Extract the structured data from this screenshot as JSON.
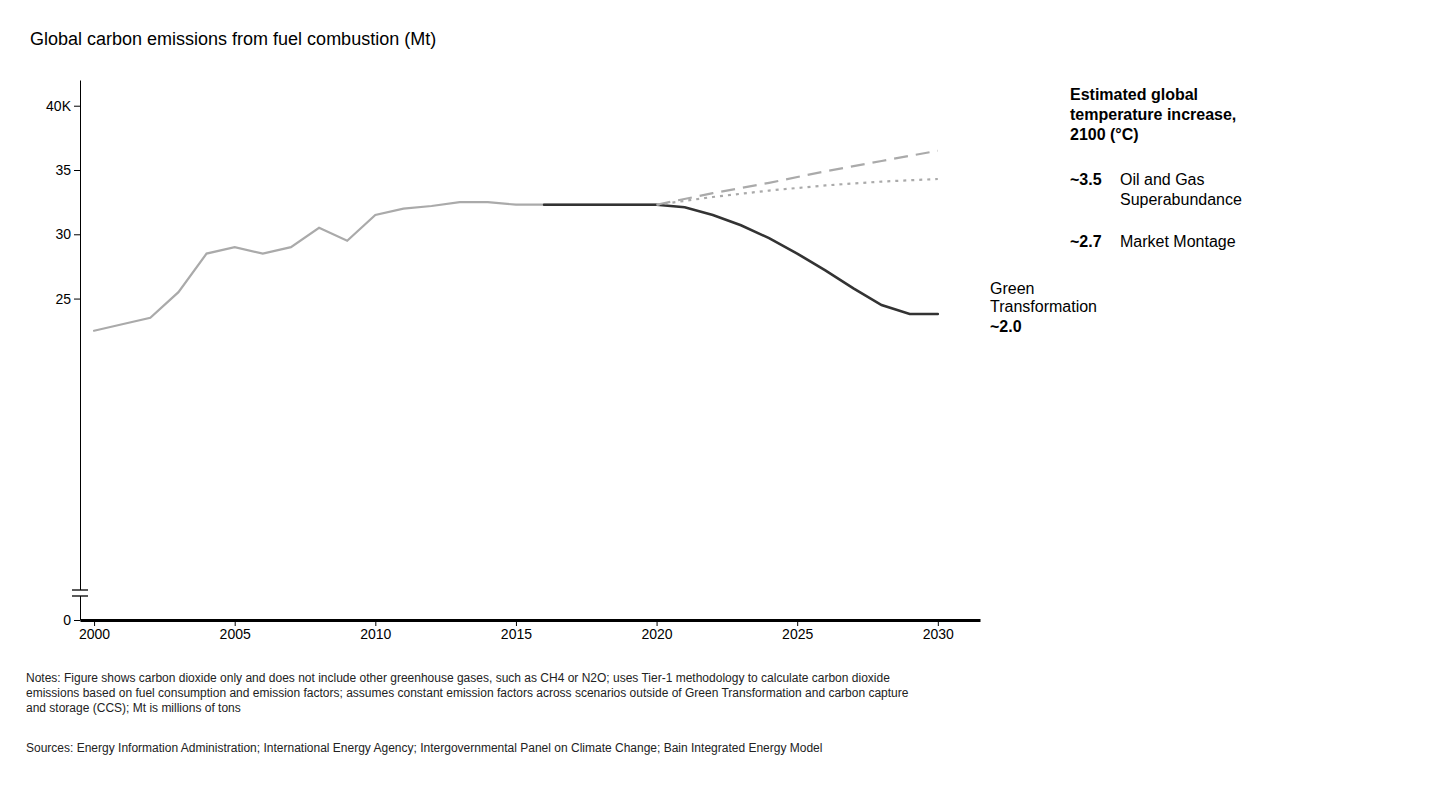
{
  "chart_data": {
    "type": "line",
    "title": "Global carbon emissions from fuel combustion (Mt)",
    "notes": "Notes: Figure shows carbon dioxide only and does not include other greenhouse gases, such as CH4 or N2O; uses Tier-1 methodology to calculate carbon dioxide\nemissions based on fuel consumption and emission factors; assumes constant emission factors across scenarios outside of Green Transformation and carbon capture\nand storage (CCS); Mt is millions of tons",
    "sources": "Sources: Energy Information Administration; International Energy Agency; Intergovernmental Panel on Climate Change; Bain Integrated Energy Model",
    "annotation": "Estimated global\ntemperature increase,\n2100 (°C)",
    "xlim": [
      1999.5,
      2031.5
    ],
    "xticks": [
      2000,
      2005,
      2010,
      2015,
      2020,
      2025,
      2030
    ],
    "ylim": [
      0,
      42
    ],
    "yticks": [
      0,
      25,
      30,
      35,
      {
        "value": 40,
        "label": "40K"
      }
    ],
    "grid": false,
    "series": [
      {
        "x": [
          2000,
          2001,
          2002,
          2003,
          2004,
          2005,
          2006,
          2007,
          2008,
          2009,
          2010,
          2011,
          2012,
          2013,
          2014,
          2015,
          2016,
          2017,
          2018,
          2019,
          2020
        ],
        "values": [
          22.5,
          23.0,
          23.5,
          25.5,
          28.5,
          29.0,
          28.5,
          29.0,
          30.5,
          29.5,
          31.5,
          32.0,
          32.2,
          32.5,
          32.5,
          32.3,
          32.3,
          32.3,
          32.3,
          32.3,
          32.3
        ],
        "color": "#aaaaaa",
        "line_style": "solid"
      },
      {
        "name": "Green\nTransformation",
        "annotation": "~2.0",
        "x": [
          2016,
          2017,
          2018,
          2019,
          2020,
          2021,
          2022,
          2023,
          2024,
          2025,
          2026,
          2027,
          2028,
          2029,
          2030
        ],
        "values": [
          32.3,
          32.3,
          32.3,
          32.3,
          32.3,
          32.1,
          31.5,
          30.7,
          29.7,
          28.5,
          27.2,
          25.8,
          24.5,
          23.8,
          23.8
        ],
        "color": "#333333",
        "line_style": "solid"
      },
      {
        "name": "Oil and Gas\nSuperabundance",
        "annotation": "~3.5",
        "x": [
          2020,
          2022,
          2024,
          2026,
          2028,
          2030
        ],
        "values": [
          32.3,
          33.2,
          34.0,
          34.9,
          35.7,
          36.5
        ],
        "color": "#aaaaaa",
        "line_style": "dashed"
      },
      {
        "name": "Market Montage",
        "annotation": "~2.7",
        "x": [
          2020,
          2022,
          2024,
          2026,
          2028,
          2030
        ],
        "values": [
          32.3,
          32.9,
          33.4,
          33.8,
          34.1,
          34.3
        ],
        "color": "#aaaaaa",
        "line_style": "dotted"
      }
    ]
  }
}
